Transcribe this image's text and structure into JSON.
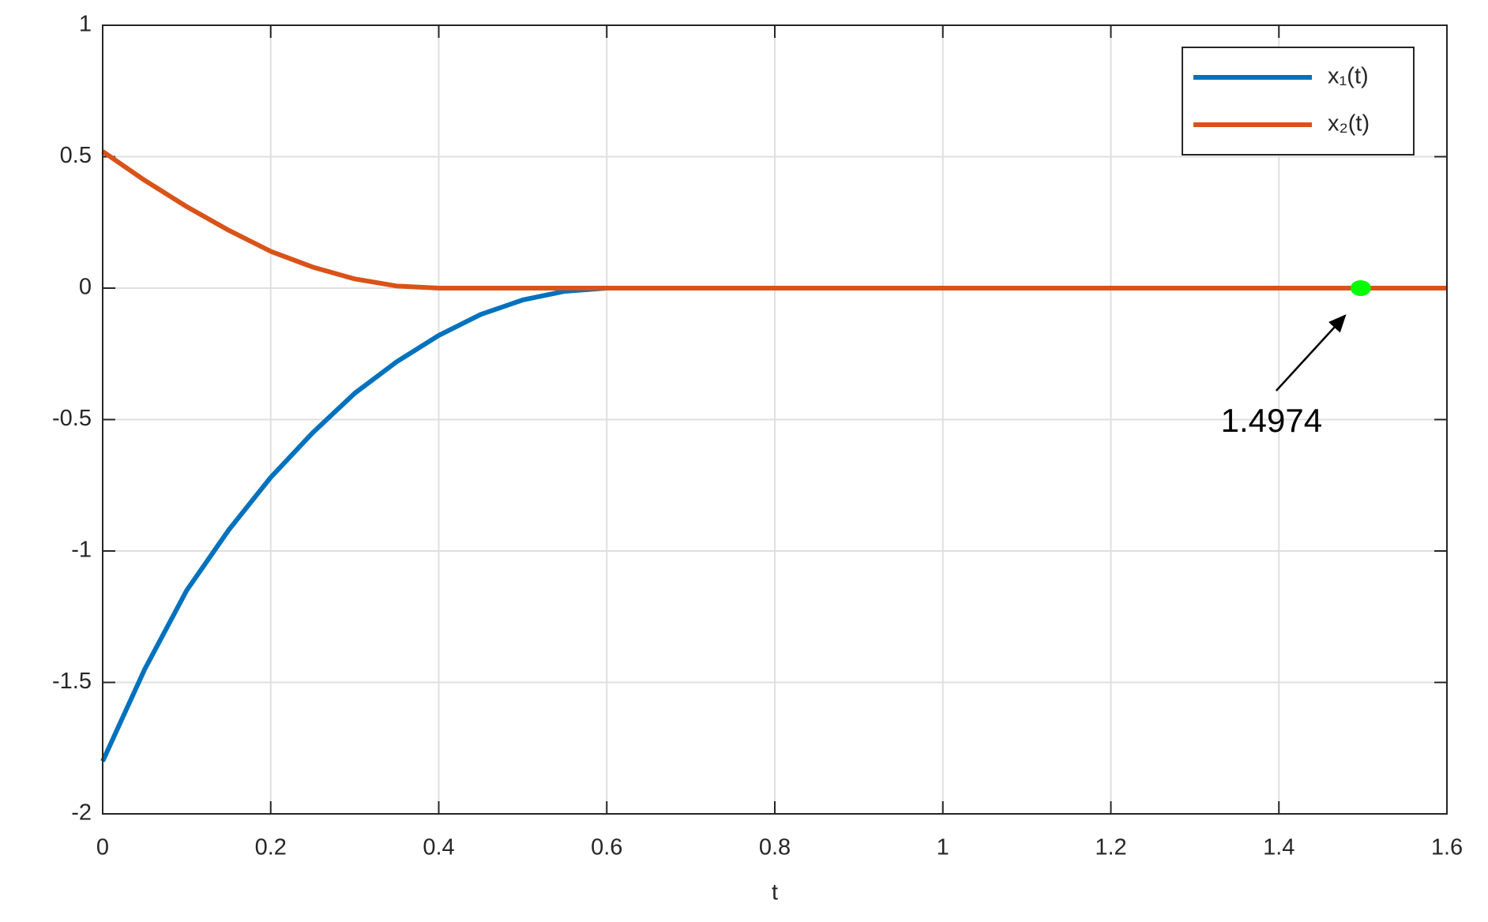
{
  "chart_data": {
    "type": "line",
    "x_label": "t",
    "x": [
      0,
      0.05,
      0.1,
      0.15,
      0.2,
      0.25,
      0.3,
      0.35,
      0.4,
      0.45,
      0.5,
      0.55,
      0.6,
      1.6
    ],
    "series": [
      {
        "name": "x₁(t)",
        "color": "#0072bd",
        "values": [
          -1.8,
          -1.45,
          -1.15,
          -0.92,
          -0.72,
          -0.55,
          -0.4,
          -0.28,
          -0.18,
          -0.1,
          -0.045,
          -0.012,
          0,
          0
        ]
      },
      {
        "name": "x₂(t)",
        "color": "#d95319",
        "values": [
          0.52,
          0.41,
          0.31,
          0.22,
          0.14,
          0.08,
          0.035,
          0.008,
          0,
          0,
          0,
          0,
          0,
          0
        ]
      }
    ],
    "xlim": [
      0,
      1.6
    ],
    "ylim": [
      -2,
      1
    ],
    "xticks": [
      0,
      0.2,
      0.4,
      0.6,
      0.8,
      1,
      1.2,
      1.4,
      1.6
    ],
    "yticks": [
      -2,
      -1.5,
      -1,
      -0.5,
      0,
      0.5,
      1
    ],
    "grid": true,
    "legend": "upper right",
    "annotation": {
      "label": "1.4974",
      "x": 1.4974,
      "y": 0,
      "color": "#00ff00"
    }
  }
}
